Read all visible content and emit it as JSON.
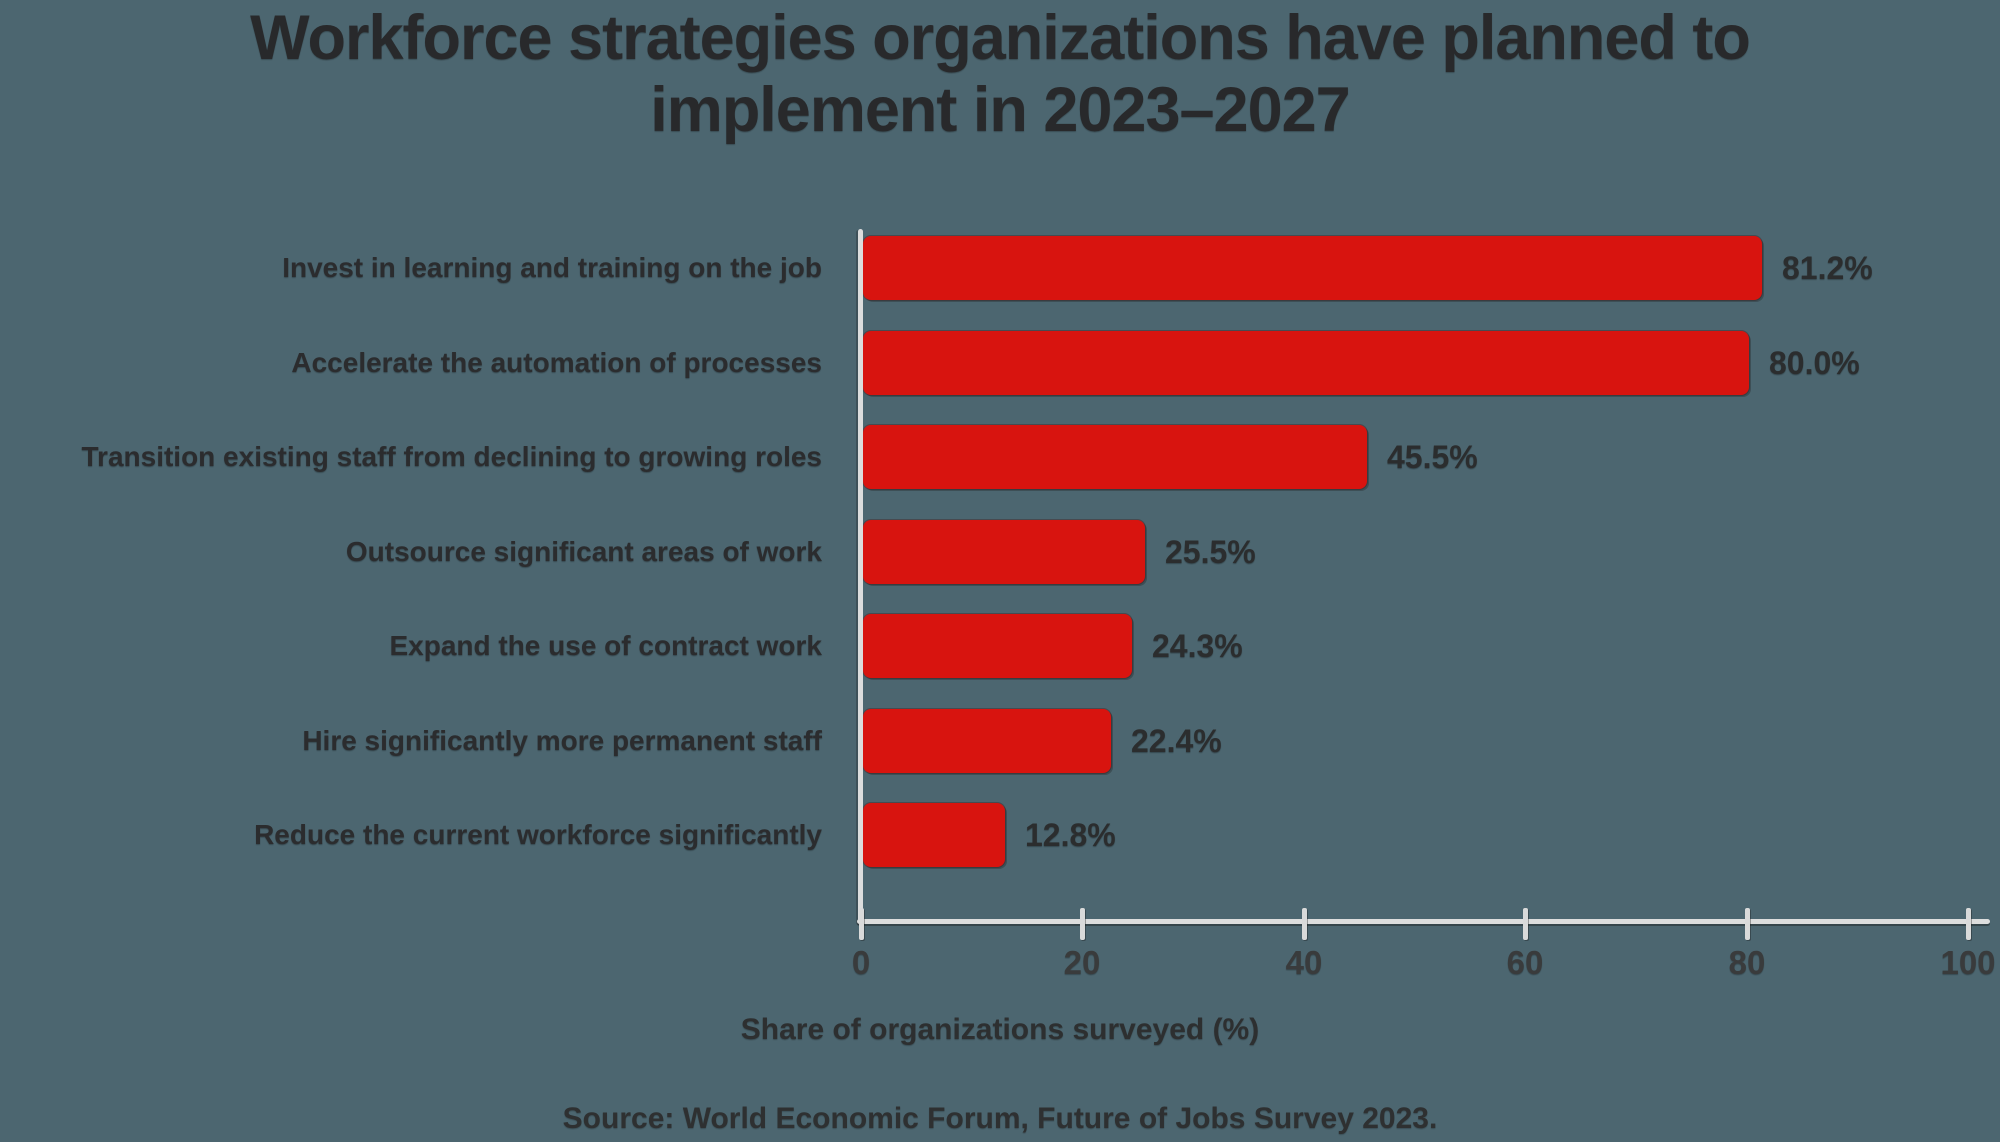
{
  "title": {
    "lines": [
      "Workforce strategies organizations have planned to",
      "implement in 2023–2027"
    ]
  },
  "chart_data": {
    "type": "bar",
    "orientation": "horizontal",
    "categories": [
      "Invest in learning and training on the job",
      "Accelerate the automation of processes",
      "Transition existing staff from declining to growing roles",
      "Outsource significant areas of work",
      "Expand the use of contract work",
      "Hire significantly more permanent staff",
      "Reduce the current workforce significantly"
    ],
    "values": [
      81.2,
      80.0,
      45.5,
      25.5,
      24.3,
      22.4,
      12.8
    ],
    "value_labels": [
      "81.2%",
      "80.0%",
      "45.5%",
      "25.5%",
      "24.3%",
      "22.4%",
      "12.8%"
    ],
    "xlabel": "Share of organizations surveyed (%)",
    "xlim": [
      0,
      100
    ],
    "xticks": [
      0,
      20,
      40,
      60,
      80,
      100
    ],
    "grid": false,
    "legend": null,
    "bar_color": "#d8140f",
    "background_color": "#4c6670",
    "axis_color": "#dcdddd",
    "text_color": "#2b2c2e"
  },
  "source": "Source: World Economic Forum, Future of Jobs Survey 2023."
}
